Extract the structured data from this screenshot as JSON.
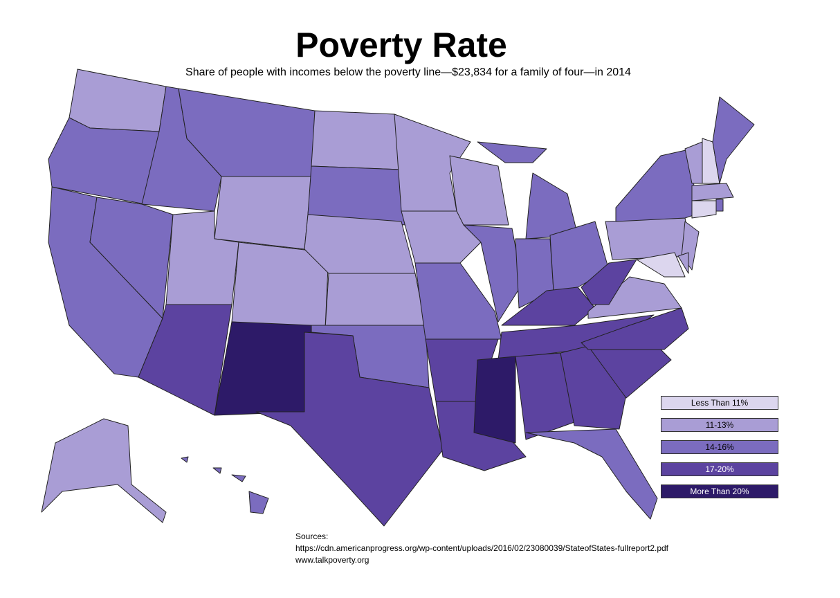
{
  "title": "Poverty Rate",
  "subtitle": "Share of people with incomes below the poverty line—$23,834 for a family of four—in 2014",
  "legend": [
    {
      "label": "Less Than 11%",
      "color": "#dcd6ee"
    },
    {
      "label": "11-13%",
      "color": "#a99dd5"
    },
    {
      "label": "14-16%",
      "color": "#7b6cbf"
    },
    {
      "label": "17-20%",
      "color": "#5c43a0"
    },
    {
      "label": "More Than 20%",
      "color": "#2d1a68"
    }
  ],
  "sources": {
    "heading": "Sources:",
    "lines": [
      "https://cdn.americanprogress.org/wp-content/uploads/2016/02/23080039/StateofStates-fullreport2.pdf",
      "www.talkpoverty.org"
    ]
  }
}
